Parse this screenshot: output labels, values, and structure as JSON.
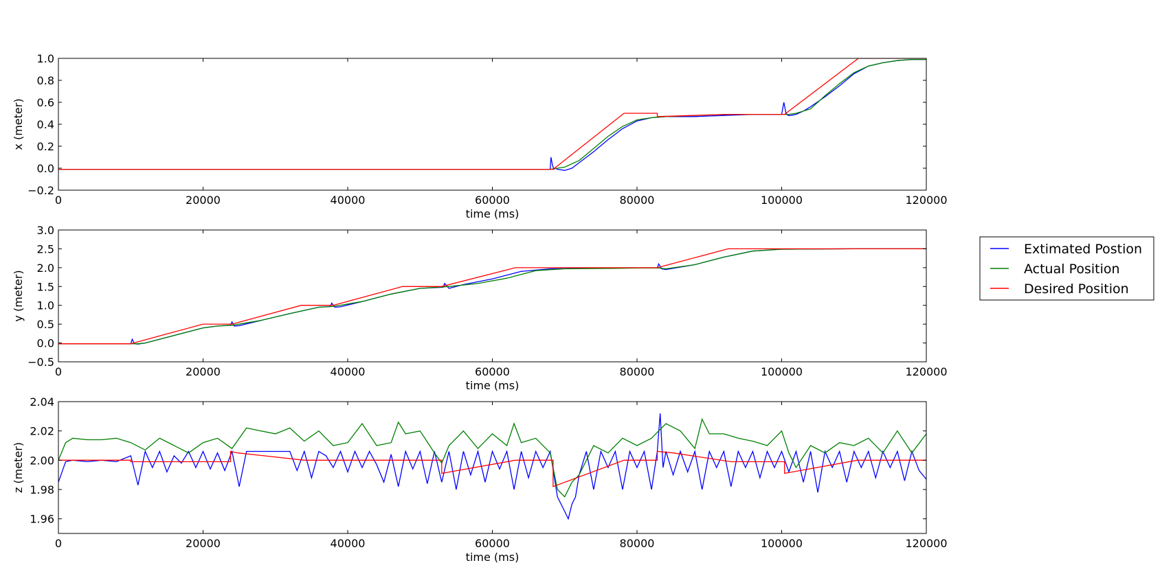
{
  "chart_data": [
    {
      "type": "line",
      "xlabel": "time (ms)",
      "ylabel": "x (meter)",
      "xlim": [
        0,
        120000
      ],
      "ylim": [
        -0.2,
        1.0
      ],
      "xticks": [
        "0",
        "20000",
        "40000",
        "60000",
        "80000",
        "100000",
        "120000"
      ],
      "yticks": [
        "−0.2",
        "0.0",
        "0.2",
        "0.4",
        "0.6",
        "0.8",
        "1.0"
      ],
      "series": [
        {
          "name": "Extimated Postion",
          "color": "#0000ff",
          "x": [
            0,
            10000,
            20000,
            30000,
            40000,
            50000,
            60000,
            68000,
            68100,
            68300,
            68500,
            68700,
            69000,
            70000,
            71000,
            72000,
            74000,
            76000,
            78000,
            80000,
            82000,
            84000,
            88000,
            92000,
            96000,
            100000,
            100300,
            100600,
            100900,
            101200,
            102000,
            103000,
            104000,
            106000,
            108000,
            110000,
            112000,
            114000,
            116000,
            118000,
            120000
          ],
          "y": [
            -0.01,
            -0.01,
            -0.01,
            -0.01,
            -0.01,
            -0.01,
            -0.01,
            -0.01,
            0.1,
            0.03,
            -0.01,
            0.0,
            -0.01,
            -0.02,
            0.0,
            0.05,
            0.15,
            0.26,
            0.36,
            0.43,
            0.46,
            0.47,
            0.47,
            0.48,
            0.49,
            0.49,
            0.6,
            0.5,
            0.48,
            0.48,
            0.49,
            0.52,
            0.56,
            0.65,
            0.75,
            0.86,
            0.93,
            0.96,
            0.98,
            0.99,
            0.99
          ]
        },
        {
          "name": "Actual Position",
          "color": "#008000",
          "x": [
            0,
            20000,
            40000,
            60000,
            68000,
            69000,
            70000,
            72000,
            74000,
            76000,
            78000,
            80000,
            82000,
            84000,
            88000,
            92000,
            96000,
            100000,
            101000,
            102000,
            104000,
            106000,
            108000,
            110000,
            112000,
            114000,
            116000,
            118000,
            120000
          ],
          "y": [
            -0.01,
            -0.01,
            -0.01,
            -0.01,
            -0.01,
            0.0,
            0.01,
            0.07,
            0.18,
            0.29,
            0.38,
            0.44,
            0.46,
            0.47,
            0.48,
            0.49,
            0.49,
            0.49,
            0.49,
            0.5,
            0.54,
            0.66,
            0.77,
            0.87,
            0.93,
            0.96,
            0.98,
            0.99,
            0.99
          ]
        },
        {
          "name": "Desired Position",
          "color": "#ff0000",
          "x": [
            0,
            10000,
            20000,
            30000,
            40000,
            50000,
            60000,
            68400,
            78200,
            82800,
            82800,
            92600,
            100400,
            110600,
            120000
          ],
          "y": [
            -0.01,
            -0.01,
            -0.01,
            -0.01,
            -0.01,
            -0.01,
            -0.01,
            -0.01,
            0.5,
            0.5,
            0.47,
            0.49,
            0.49,
            1.0,
            1.0
          ]
        }
      ]
    },
    {
      "type": "line",
      "xlabel": "time (ms)",
      "ylabel": "y (meter)",
      "xlim": [
        0,
        120000
      ],
      "ylim": [
        -0.5,
        3.0
      ],
      "xticks": [
        "0",
        "20000",
        "40000",
        "60000",
        "80000",
        "100000",
        "120000"
      ],
      "yticks": [
        "−0.5",
        "0.0",
        "0.5",
        "1.0",
        "1.5",
        "2.0",
        "2.5",
        "3.0"
      ],
      "series": [
        {
          "name": "Extimated Postion",
          "color": "#0000ff",
          "x": [
            0,
            10000,
            10200,
            10500,
            11000,
            12000,
            14000,
            16000,
            18000,
            20000,
            22000,
            23800,
            24000,
            24300,
            25000,
            28000,
            32000,
            36000,
            37600,
            37800,
            38200,
            39000,
            42000,
            46000,
            50000,
            53200,
            53400,
            54000,
            56000,
            60000,
            64000,
            68000,
            72000,
            76000,
            80000,
            82800,
            83000,
            83400,
            84000,
            88000,
            92000,
            96000,
            100000,
            110000,
            120000
          ],
          "y": [
            -0.02,
            -0.02,
            0.1,
            -0.02,
            -0.03,
            0.0,
            0.1,
            0.2,
            0.3,
            0.4,
            0.45,
            0.47,
            0.56,
            0.45,
            0.46,
            0.6,
            0.78,
            0.95,
            0.97,
            1.06,
            0.95,
            0.96,
            1.1,
            1.3,
            1.45,
            1.48,
            1.58,
            1.45,
            1.55,
            1.7,
            1.9,
            1.97,
            1.98,
            1.99,
            1.99,
            1.99,
            2.1,
            1.97,
            1.95,
            2.08,
            2.28,
            2.44,
            2.49,
            2.5,
            2.5
          ]
        },
        {
          "name": "Actual Position",
          "color": "#008000",
          "x": [
            0,
            10000,
            11000,
            12000,
            14000,
            16000,
            18000,
            20000,
            22000,
            24000,
            28000,
            32000,
            36000,
            38000,
            42000,
            46000,
            50000,
            54000,
            58000,
            62000,
            66000,
            70000,
            76000,
            80000,
            83000,
            84000,
            88000,
            92000,
            96000,
            100000,
            110000,
            120000
          ],
          "y": [
            -0.02,
            -0.02,
            -0.02,
            0.0,
            0.1,
            0.2,
            0.3,
            0.4,
            0.45,
            0.47,
            0.6,
            0.78,
            0.95,
            0.97,
            1.1,
            1.3,
            1.45,
            1.5,
            1.58,
            1.72,
            1.92,
            1.97,
            1.98,
            1.99,
            1.99,
            1.97,
            2.08,
            2.28,
            2.44,
            2.49,
            2.5,
            2.5
          ]
        },
        {
          "name": "Desired Position",
          "color": "#ff0000",
          "x": [
            0,
            10000,
            20000,
            24000,
            33600,
            38000,
            47600,
            53000,
            63200,
            68400,
            82800,
            92600,
            100000,
            120000
          ],
          "y": [
            -0.02,
            -0.02,
            0.5,
            0.5,
            1.0,
            1.0,
            1.5,
            1.5,
            2.0,
            2.0,
            2.0,
            2.5,
            2.5,
            2.5
          ]
        }
      ]
    },
    {
      "type": "line",
      "xlabel": "time (ms)",
      "ylabel": "z (meter)",
      "xlim": [
        0,
        120000
      ],
      "ylim": [
        1.95,
        2.04
      ],
      "xticks": [
        "0",
        "20000",
        "40000",
        "60000",
        "80000",
        "100000",
        "120000"
      ],
      "yticks": [
        "1.96",
        "1.98",
        "2.00",
        "2.02",
        "2.04"
      ],
      "series": [
        {
          "name": "Extimated Postion",
          "color": "#0000ff",
          "x": [
            0,
            1000,
            2000,
            4000,
            6000,
            8000,
            10000,
            11000,
            12000,
            13000,
            14000,
            15000,
            16000,
            17000,
            18000,
            19000,
            20000,
            21000,
            22000,
            23000,
            24000,
            25000,
            26000,
            27000,
            28000,
            29000,
            30000,
            31000,
            32000,
            33000,
            34000,
            35000,
            36000,
            37000,
            38000,
            39000,
            40000,
            41000,
            42000,
            43000,
            44000,
            45000,
            46000,
            47000,
            48000,
            49000,
            50000,
            51000,
            52000,
            53000,
            54000,
            55000,
            56000,
            57000,
            58000,
            59000,
            60000,
            61000,
            62000,
            63000,
            64000,
            65000,
            66000,
            67000,
            68000,
            69000,
            70000,
            70500,
            71000,
            71500,
            72000,
            73000,
            74000,
            75000,
            76000,
            77000,
            78000,
            79000,
            80000,
            81000,
            82000,
            82800,
            83200,
            83600,
            84000,
            85000,
            86000,
            87000,
            88000,
            89000,
            90000,
            91000,
            92000,
            93000,
            94000,
            95000,
            96000,
            97000,
            98000,
            99000,
            100000,
            101000,
            102000,
            103000,
            104000,
            105000,
            106000,
            107000,
            108000,
            109000,
            110000,
            111000,
            112000,
            113000,
            114000,
            115000,
            116000,
            117000,
            118000,
            119000,
            120000
          ],
          "y": [
            1.985,
            1.999,
            2.0,
            1.999,
            2.0,
            1.999,
            2.003,
            1.983,
            2.006,
            1.995,
            2.006,
            1.992,
            2.003,
            1.998,
            2.006,
            1.995,
            2.006,
            1.994,
            2.005,
            1.993,
            2.006,
            1.982,
            2.006,
            2.006,
            2.006,
            2.006,
            2.006,
            2.006,
            2.006,
            1.993,
            2.006,
            1.988,
            2.006,
            2.003,
            1.995,
            2.006,
            1.992,
            2.006,
            1.995,
            2.006,
            1.997,
            1.985,
            2.004,
            1.982,
            2.006,
            1.994,
            2.006,
            1.984,
            2.006,
            1.985,
            2.006,
            1.98,
            2.006,
            1.99,
            2.006,
            1.985,
            2.006,
            1.994,
            2.006,
            1.98,
            2.006,
            1.988,
            2.006,
            1.995,
            2.006,
            1.975,
            1.965,
            1.96,
            1.97,
            1.975,
            1.99,
            2.006,
            1.98,
            2.006,
            1.995,
            2.006,
            1.98,
            2.006,
            1.995,
            2.006,
            1.98,
            2.006,
            2.032,
            1.995,
            2.006,
            1.99,
            2.006,
            1.992,
            2.006,
            1.98,
            2.006,
            1.995,
            2.006,
            1.982,
            2.006,
            1.995,
            2.006,
            1.988,
            2.006,
            1.995,
            2.006,
            1.992,
            2.006,
            1.985,
            2.006,
            1.978,
            2.006,
            1.995,
            2.006,
            1.985,
            2.006,
            1.995,
            2.006,
            1.988,
            2.006,
            1.995,
            2.006,
            1.986,
            2.006,
            1.993,
            1.987
          ]
        },
        {
          "name": "Actual Position",
          "color": "#008000",
          "x": [
            0,
            1000,
            2000,
            4000,
            6000,
            8000,
            10000,
            12000,
            14000,
            16000,
            18000,
            20000,
            22000,
            24000,
            26000,
            28000,
            30000,
            32000,
            34000,
            36000,
            38000,
            40000,
            42000,
            44000,
            46000,
            47000,
            48000,
            50000,
            52000,
            53000,
            54000,
            56000,
            58000,
            60000,
            62000,
            63000,
            64000,
            66000,
            68000,
            69000,
            70000,
            71000,
            72000,
            74000,
            76000,
            78000,
            80000,
            82000,
            84000,
            86000,
            88000,
            89000,
            90000,
            92000,
            94000,
            96000,
            98000,
            100000,
            101000,
            102000,
            104000,
            106000,
            108000,
            110000,
            112000,
            114000,
            116000,
            118000,
            120000
          ],
          "y": [
            2.0,
            2.012,
            2.015,
            2.014,
            2.014,
            2.015,
            2.012,
            2.007,
            2.015,
            2.01,
            2.005,
            2.012,
            2.015,
            2.008,
            2.022,
            2.02,
            2.018,
            2.022,
            2.013,
            2.02,
            2.01,
            2.012,
            2.025,
            2.01,
            2.012,
            2.026,
            2.018,
            2.02,
            2.005,
            1.998,
            2.01,
            2.02,
            2.008,
            2.018,
            2.01,
            2.025,
            2.012,
            2.015,
            2.005,
            1.98,
            1.975,
            1.985,
            1.99,
            2.01,
            2.005,
            2.015,
            2.01,
            2.015,
            2.025,
            2.02,
            2.008,
            2.028,
            2.018,
            2.018,
            2.015,
            2.013,
            2.01,
            2.02,
            2.005,
            1.995,
            2.01,
            2.005,
            2.012,
            2.01,
            2.015,
            2.005,
            2.02,
            2.005,
            2.018
          ]
        },
        {
          "name": "Desired Position",
          "color": "#ff0000",
          "x": [
            0,
            10000,
            10000,
            18000,
            23800,
            23800,
            24800,
            34000,
            46000,
            53000,
            53000,
            63200,
            68400,
            68400,
            78200,
            82800,
            82800,
            85000,
            93000,
            100400,
            100400,
            110500,
            120000
          ],
          "y": [
            2.0,
            2.0,
            1.999,
            1.999,
            1.999,
            2.006,
            2.005,
            2.0,
            2.0,
            2.0,
            1.991,
            2.0,
            2.0,
            1.982,
            2.0,
            2.0,
            2.006,
            2.005,
            1.999,
            1.999,
            1.991,
            2.0,
            2.0
          ]
        }
      ]
    }
  ],
  "legend": {
    "entries": [
      {
        "label": "Extimated Postion",
        "color": "#0000ff"
      },
      {
        "label": "Actual Position",
        "color": "#008000"
      },
      {
        "label": "Desired Position",
        "color": "#ff0000"
      }
    ]
  }
}
